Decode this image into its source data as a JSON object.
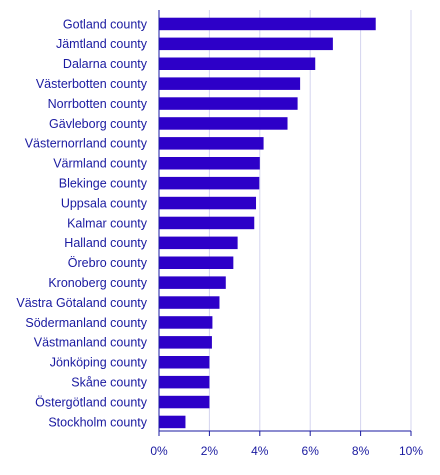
{
  "chart_data": {
    "type": "bar",
    "orientation": "horizontal",
    "title": "",
    "xlabel": "",
    "ylabel": "",
    "categories": [
      "Gotland county",
      "Jämtland county",
      "Dalarna county",
      "Västerbotten county",
      "Norrbotten county",
      "Gävleborg county",
      "Västernorrland county",
      "Värmland county",
      "Blekinge county",
      "Uppsala county",
      "Kalmar county",
      "Halland county",
      "Örebro county",
      "Kronoberg county",
      "Västra Götaland county",
      "Södermanland county",
      "Västmanland county",
      "Jönköping county",
      "Skåne county",
      "Östergötland county",
      "Stockholm county"
    ],
    "values": [
      8.6,
      6.9,
      6.2,
      5.6,
      5.5,
      5.1,
      4.15,
      4.0,
      3.98,
      3.85,
      3.78,
      3.12,
      2.95,
      2.65,
      2.4,
      2.12,
      2.1,
      2.0,
      2.0,
      2.0,
      1.05
    ],
    "xlim": [
      0,
      10
    ],
    "xticks": [
      0,
      2,
      4,
      6,
      8,
      10
    ],
    "xtick_labels": [
      "0%",
      "2%",
      "4%",
      "6%",
      "8%",
      "10%"
    ],
    "grid": true,
    "legend": "none",
    "colors": {
      "bar": "#2d00c8",
      "text": "#1a1aa0",
      "grid": "#d4d4ef"
    }
  }
}
